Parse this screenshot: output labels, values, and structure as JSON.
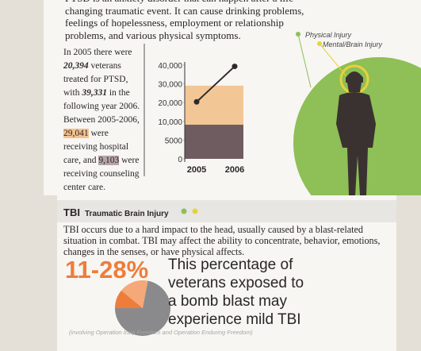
{
  "intro": [
    "PTSD is an anxiety disorder that can happen after a life-",
    "changing traumatic event. It can cause drinking problems,",
    "feelings of hopelessness, employment or relationship",
    "problems, and various physical symptoms."
  ],
  "ptsd_text": [
    {
      "text": "In 2005 there were "
    },
    {
      "text": "20,394",
      "style": "bold"
    },
    {
      "text": " veterans treated for PTSD, with "
    },
    {
      "text": "39,331",
      "style": "bold"
    },
    {
      "text": " in the following year 2006. Between 2005-2006, "
    },
    {
      "text": "29,041",
      "style": "orange"
    },
    {
      "text": " were receiving hospital care, and "
    },
    {
      "text": "9,103",
      "style": "mauve"
    },
    {
      "text": " were receiving counseling center care."
    }
  ],
  "chart_data": {
    "type": "line",
    "categories": [
      "2005",
      "2006"
    ],
    "series": [
      {
        "color": "#2e2a2a",
        "values": [
          20394,
          39331
        ]
      }
    ],
    "bands": [
      {
        "value": 29041,
        "color": "#f3c795"
      },
      {
        "value": 9103,
        "color": "#6f5c60"
      }
    ],
    "ylim": [
      0,
      40000
    ],
    "yticks": [
      0,
      5000,
      {
        "value": 10000,
        "label": "10,000"
      },
      {
        "value": 20000,
        "label": "20,000"
      },
      {
        "value": 30000,
        "label": "30,000"
      },
      {
        "value": 40000,
        "label": "40,000"
      }
    ]
  },
  "legend": [
    {
      "label": "Physical Injury",
      "color": "#8fbf57"
    },
    {
      "label": "Mental/Brain Injury",
      "color": "#e8d23a"
    }
  ],
  "tbi": {
    "abbr": "TBI",
    "title": "Traumatic Brain Injury",
    "text": "TBI occurs due to a hard impact to the head, usually caused by a blast-related situation in combat. TBI may affect the ability to concentrate, behavior, emotions, changes in the senses, or have physical affects.",
    "percent": "11-28%",
    "statement": [
      "This percentage of",
      "veterans exposed to",
      "a bomb blast may",
      "experience mild TBI"
    ],
    "footnote": "(involving Operation Iraqi Freedom and Operation Enduring Freedom)",
    "pie": {
      "type": "pie",
      "values": [
        11,
        17,
        72
      ],
      "colors": [
        "#ee7d3b",
        "#f5a878",
        "#8a8a8c"
      ]
    }
  }
}
